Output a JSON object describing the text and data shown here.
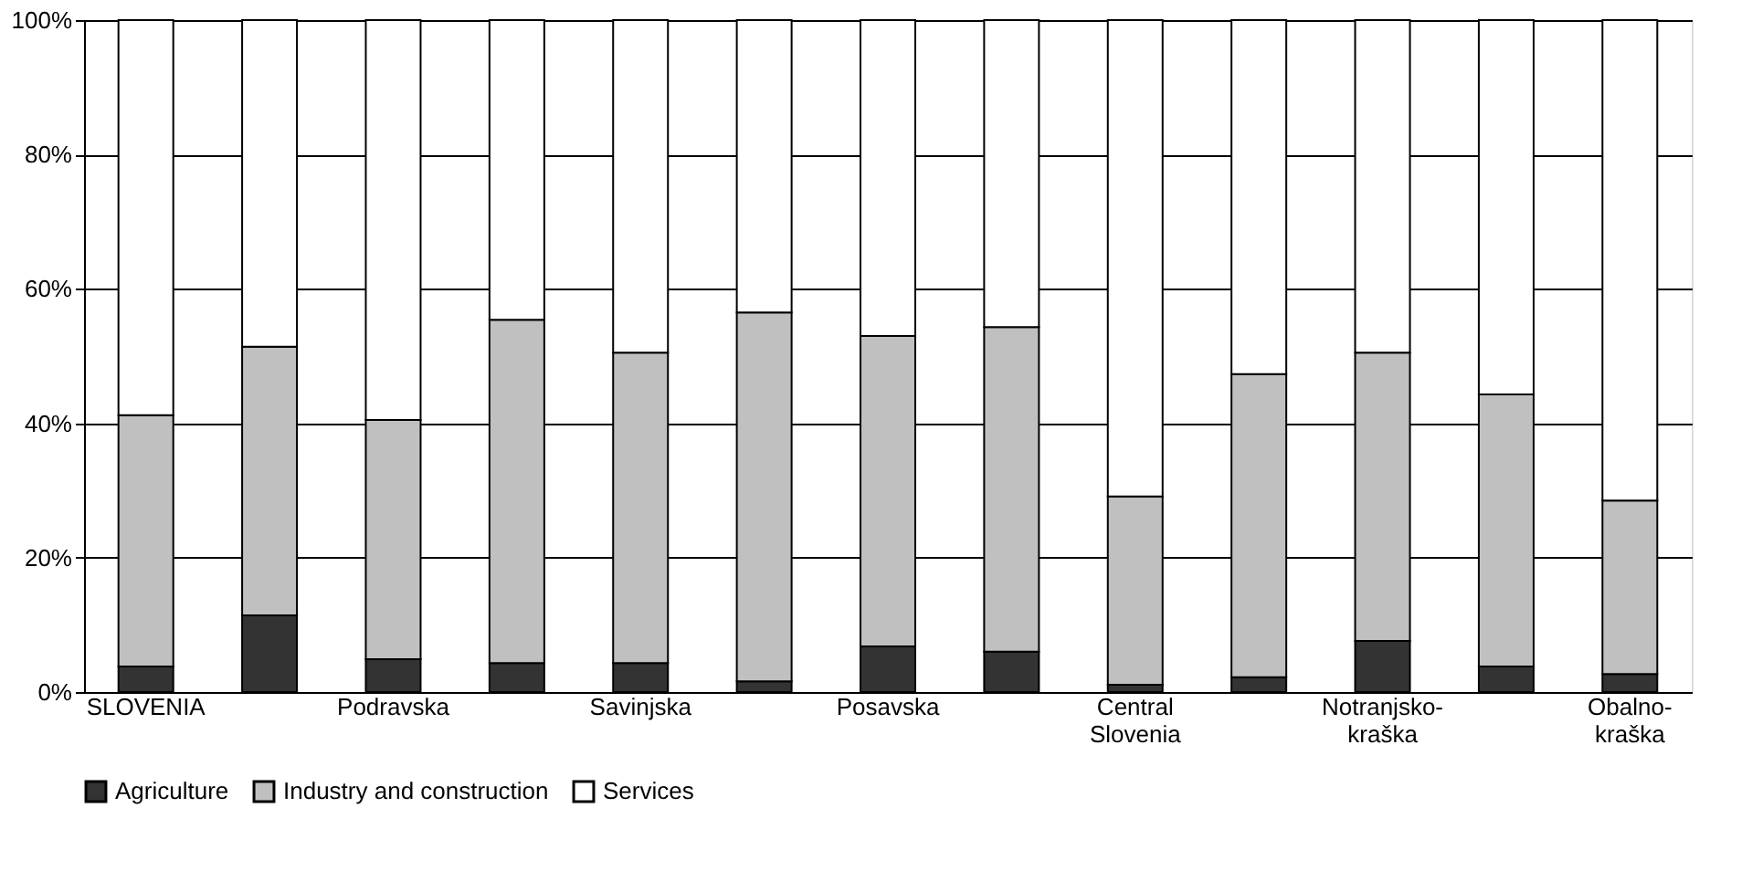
{
  "chart_data": {
    "type": "bar",
    "stacked": true,
    "categories": [
      "SLOVENIA",
      null,
      "Podravska",
      null,
      "Savinjska",
      null,
      "Posavska",
      null,
      "Central Slovenia",
      null,
      "Notranjsko-kraška",
      null,
      "Obalno-kraška"
    ],
    "series": [
      {
        "name": "Agriculture",
        "color": "#333333",
        "values": [
          3.8,
          11.4,
          4.9,
          4.3,
          4.3,
          1.6,
          6.8,
          6,
          1.1,
          2.2,
          7.6,
          3.8,
          2.7
        ]
      },
      {
        "name": "Industry and construction",
        "color": "#c0c0c0",
        "values": [
          37.4,
          40,
          35.6,
          51.1,
          46.2,
          54.9,
          46.2,
          48.3,
          28,
          45.1,
          42.9,
          40.5,
          25.8
        ]
      },
      {
        "name": "Services",
        "color": "#ffffff",
        "values": [
          58.8,
          48.6,
          59.5,
          44.6,
          49.5,
          43.5,
          47,
          45.7,
          70.9,
          52.7,
          49.5,
          55.7,
          71.5
        ]
      }
    ],
    "ylim": [
      0,
      100
    ],
    "yticks": [
      {
        "value": 0,
        "label": "0%"
      },
      {
        "value": 20,
        "label": "20%"
      },
      {
        "value": 40,
        "label": "40%"
      },
      {
        "value": 60,
        "label": "60%"
      },
      {
        "value": 80,
        "label": "80%"
      },
      {
        "value": 100,
        "label": "100%"
      }
    ],
    "grid": "y",
    "legend": "bottom left"
  }
}
